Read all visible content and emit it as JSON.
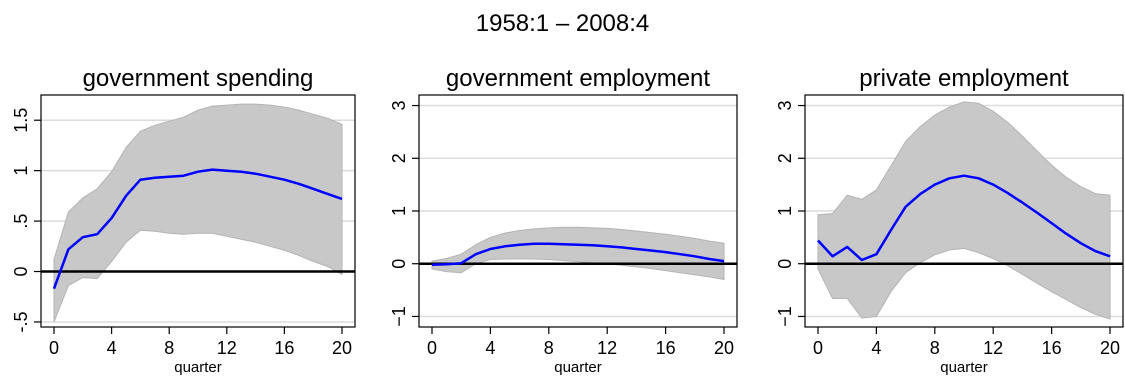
{
  "figure": {
    "title": "1958:1 – 2008:4"
  },
  "colors": {
    "band": "#c8c8c8",
    "band_edge": "#b4b4b4",
    "line": "#0000ff",
    "zero": "#000000",
    "grid": "#dcdcdc"
  },
  "chart_data": [
    {
      "type": "line",
      "title": "government spending",
      "xlabel": "quarter",
      "ylabel": "",
      "xlim": [
        0,
        20
      ],
      "ylim": [
        -0.55,
        1.75
      ],
      "xticks": [
        0,
        4,
        8,
        12,
        16,
        20
      ],
      "yticks": [
        -0.5,
        0,
        0.5,
        1,
        1.5
      ],
      "ytick_labels": [
        "-.5",
        "0",
        ".5",
        "1",
        "1.5"
      ],
      "grid": true,
      "x": [
        0,
        1,
        2,
        3,
        4,
        5,
        6,
        7,
        8,
        9,
        10,
        11,
        12,
        13,
        14,
        15,
        16,
        17,
        18,
        19,
        20
      ],
      "series": [
        {
          "values": [
            -0.17,
            0.22,
            0.34,
            0.37,
            0.53,
            0.75,
            0.91,
            0.93,
            0.94,
            0.95,
            0.99,
            1.01,
            1.0,
            0.99,
            0.97,
            0.94,
            0.91,
            0.87,
            0.82,
            0.77,
            0.72
          ]
        }
      ],
      "band_upper": [
        0.12,
        0.59,
        0.73,
        0.82,
        0.99,
        1.23,
        1.39,
        1.45,
        1.49,
        1.53,
        1.6,
        1.64,
        1.65,
        1.66,
        1.66,
        1.65,
        1.63,
        1.6,
        1.56,
        1.52,
        1.46
      ],
      "band_lower": [
        -0.5,
        -0.14,
        -0.06,
        -0.07,
        0.1,
        0.29,
        0.41,
        0.4,
        0.38,
        0.37,
        0.38,
        0.38,
        0.35,
        0.32,
        0.29,
        0.25,
        0.21,
        0.16,
        0.1,
        0.05,
        -0.03
      ]
    },
    {
      "type": "line",
      "title": "government employment",
      "xlabel": "quarter",
      "ylabel": "",
      "xlim": [
        0,
        20
      ],
      "ylim": [
        -1.2,
        3.2
      ],
      "xticks": [
        0,
        4,
        8,
        12,
        16,
        20
      ],
      "yticks": [
        -1,
        0,
        1,
        2,
        3
      ],
      "ytick_labels": [
        "−1",
        "0",
        "1",
        "2",
        "3"
      ],
      "grid": true,
      "x": [
        0,
        1,
        2,
        3,
        4,
        5,
        6,
        7,
        8,
        9,
        10,
        11,
        12,
        13,
        14,
        15,
        16,
        17,
        18,
        19,
        20
      ],
      "series": [
        {
          "values": [
            -0.02,
            -0.01,
            0.01,
            0.18,
            0.28,
            0.33,
            0.36,
            0.38,
            0.38,
            0.37,
            0.36,
            0.35,
            0.33,
            0.31,
            0.28,
            0.25,
            0.22,
            0.18,
            0.14,
            0.09,
            0.05
          ]
        }
      ],
      "band_upper": [
        0.05,
        0.1,
        0.18,
        0.36,
        0.5,
        0.58,
        0.63,
        0.66,
        0.68,
        0.69,
        0.69,
        0.68,
        0.67,
        0.65,
        0.62,
        0.59,
        0.56,
        0.52,
        0.48,
        0.43,
        0.39
      ],
      "band_lower": [
        -0.1,
        -0.15,
        -0.17,
        0.0,
        0.08,
        0.09,
        0.09,
        0.09,
        0.08,
        0.06,
        0.04,
        0.02,
        0.0,
        -0.03,
        -0.06,
        -0.09,
        -0.13,
        -0.17,
        -0.21,
        -0.25,
        -0.3
      ]
    },
    {
      "type": "line",
      "title": "private employment",
      "xlabel": "quarter",
      "ylabel": "",
      "xlim": [
        0,
        20
      ],
      "ylim": [
        -1.2,
        3.2
      ],
      "xticks": [
        0,
        4,
        8,
        12,
        16,
        20
      ],
      "yticks": [
        -1,
        0,
        1,
        2,
        3
      ],
      "ytick_labels": [
        "−1",
        "0",
        "1",
        "2",
        "3"
      ],
      "grid": true,
      "x": [
        0,
        1,
        2,
        3,
        4,
        5,
        6,
        7,
        8,
        9,
        10,
        11,
        12,
        13,
        14,
        15,
        16,
        17,
        18,
        19,
        20
      ],
      "series": [
        {
          "values": [
            0.44,
            0.14,
            0.32,
            0.07,
            0.18,
            0.64,
            1.08,
            1.32,
            1.5,
            1.62,
            1.67,
            1.62,
            1.5,
            1.34,
            1.16,
            0.97,
            0.77,
            0.57,
            0.39,
            0.24,
            0.14
          ]
        }
      ],
      "band_upper": [
        0.93,
        0.95,
        1.3,
        1.22,
        1.4,
        1.86,
        2.32,
        2.6,
        2.82,
        2.97,
        3.07,
        3.04,
        2.89,
        2.68,
        2.42,
        2.14,
        1.87,
        1.64,
        1.46,
        1.33,
        1.3
      ],
      "band_lower": [
        -0.1,
        -0.66,
        -0.66,
        -1.03,
        -1.0,
        -0.53,
        -0.17,
        0.02,
        0.17,
        0.26,
        0.29,
        0.21,
        0.1,
        -0.04,
        -0.2,
        -0.37,
        -0.53,
        -0.68,
        -0.83,
        -0.96,
        -1.05
      ]
    }
  ]
}
